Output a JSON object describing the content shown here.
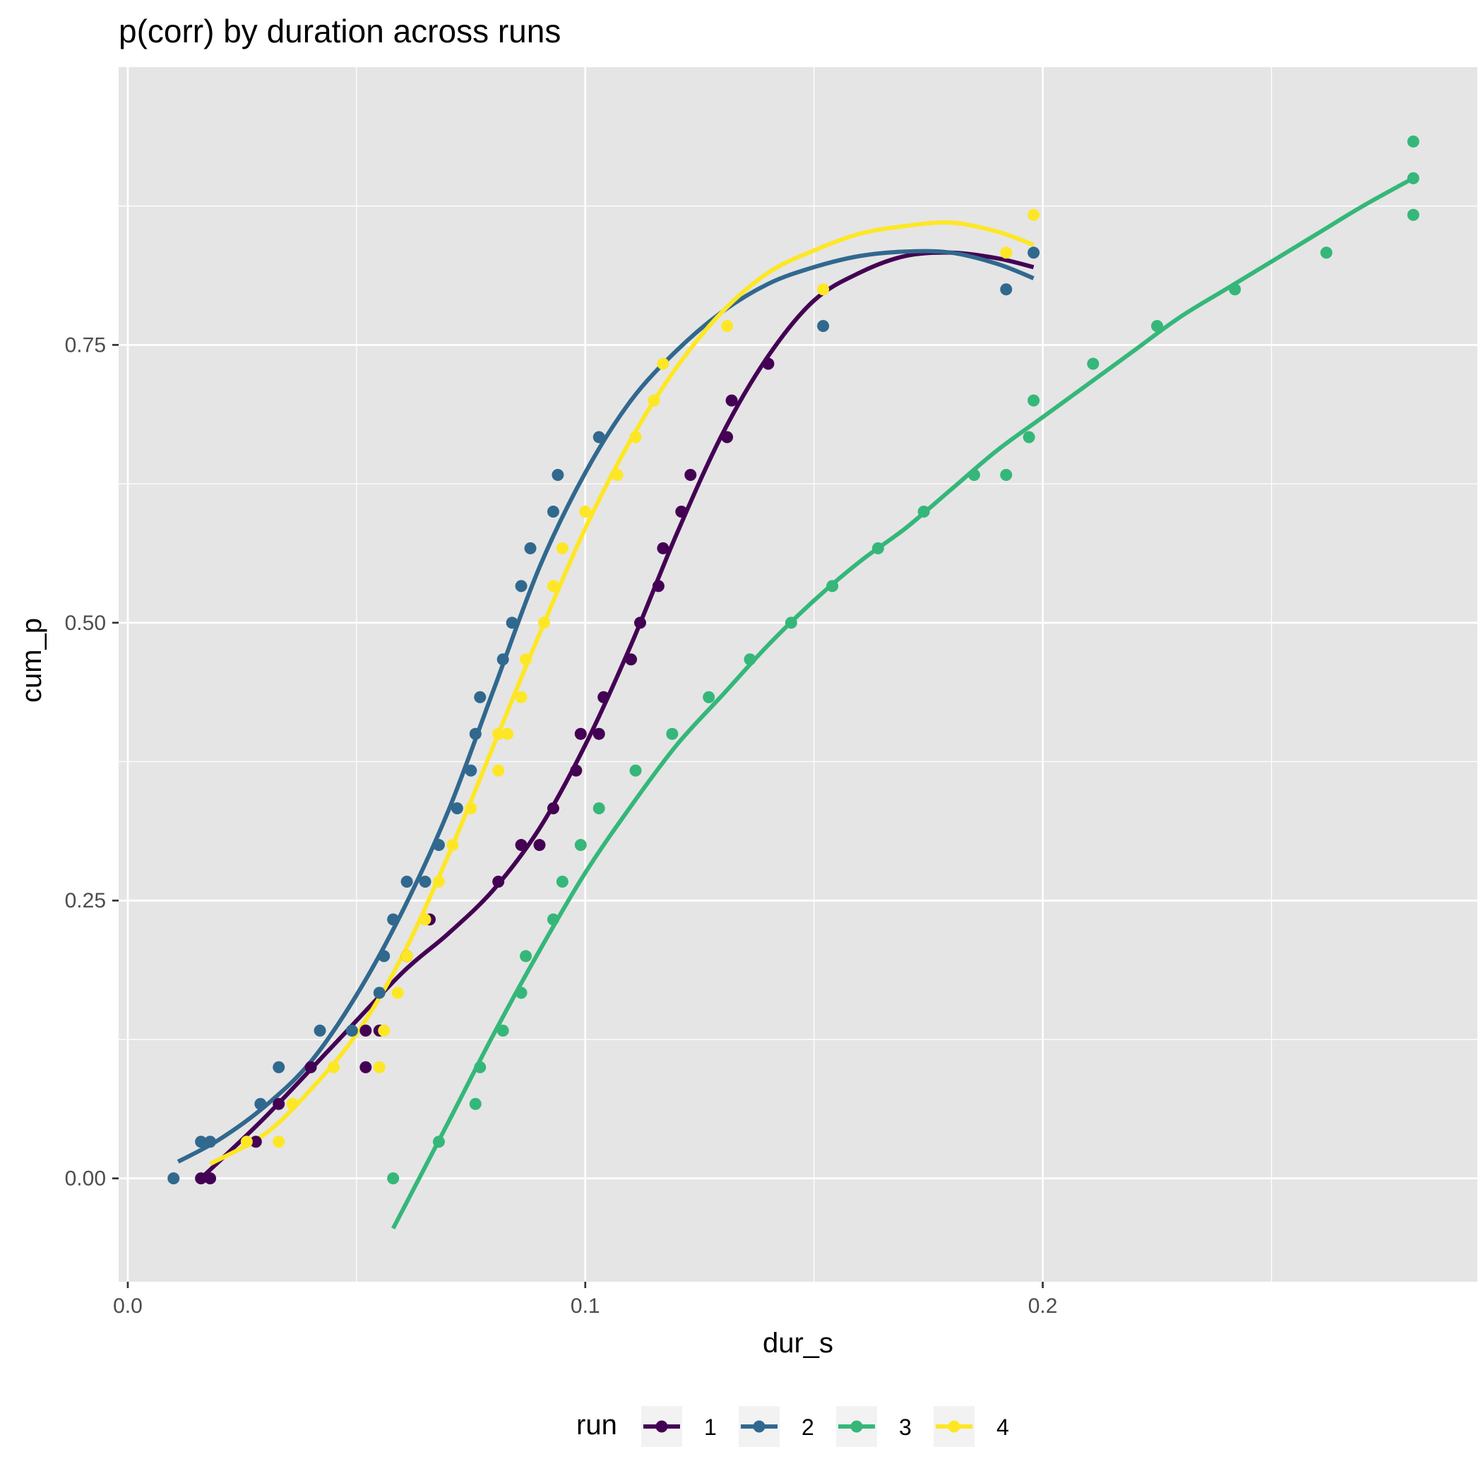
{
  "chart_data": {
    "type": "scatter",
    "title": "p(corr) by duration across runs",
    "xlabel": "dur_s",
    "ylabel": "cum_p",
    "xlim": [
      -0.002,
      0.295
    ],
    "ylim": [
      -0.093,
      1.0
    ],
    "x_ticks": [
      0.0,
      0.1,
      0.2
    ],
    "x_tick_labels": [
      "0.0",
      "0.1",
      "0.2"
    ],
    "y_ticks": [
      0.0,
      0.25,
      0.5,
      0.75
    ],
    "y_tick_labels": [
      "0.00",
      "0.25",
      "0.50",
      "0.75"
    ],
    "grid": true,
    "smooth_lines": true,
    "legend": {
      "title": "run",
      "position": "bottom",
      "entries": [
        "1",
        "2",
        "3",
        "4"
      ]
    },
    "series": [
      {
        "name": "1",
        "color": "#440154",
        "points": [
          [
            0.016,
            0.0
          ],
          [
            0.018,
            0.0
          ],
          [
            0.028,
            0.033
          ],
          [
            0.033,
            0.067
          ],
          [
            0.04,
            0.1
          ],
          [
            0.052,
            0.1
          ],
          [
            0.052,
            0.133
          ],
          [
            0.055,
            0.133
          ],
          [
            0.061,
            0.2
          ],
          [
            0.066,
            0.233
          ],
          [
            0.081,
            0.267
          ],
          [
            0.086,
            0.3
          ],
          [
            0.09,
            0.3
          ],
          [
            0.093,
            0.333
          ],
          [
            0.098,
            0.367
          ],
          [
            0.099,
            0.4
          ],
          [
            0.103,
            0.4
          ],
          [
            0.104,
            0.433
          ],
          [
            0.11,
            0.467
          ],
          [
            0.112,
            0.5
          ],
          [
            0.116,
            0.533
          ],
          [
            0.117,
            0.567
          ],
          [
            0.121,
            0.6
          ],
          [
            0.123,
            0.633
          ],
          [
            0.131,
            0.667
          ],
          [
            0.132,
            0.7
          ],
          [
            0.14,
            0.733
          ]
        ],
        "fit": [
          [
            0.016,
            0.0
          ],
          [
            0.03,
            0.055
          ],
          [
            0.045,
            0.12
          ],
          [
            0.06,
            0.185
          ],
          [
            0.07,
            0.22
          ],
          [
            0.08,
            0.26
          ],
          [
            0.09,
            0.315
          ],
          [
            0.1,
            0.39
          ],
          [
            0.11,
            0.48
          ],
          [
            0.12,
            0.58
          ],
          [
            0.13,
            0.67
          ],
          [
            0.14,
            0.74
          ],
          [
            0.15,
            0.79
          ],
          [
            0.16,
            0.815
          ],
          [
            0.17,
            0.83
          ],
          [
            0.18,
            0.833
          ],
          [
            0.19,
            0.828
          ],
          [
            0.198,
            0.82
          ]
        ]
      },
      {
        "name": "2",
        "color": "#31688e",
        "points": [
          [
            0.01,
            0.0
          ],
          [
            0.016,
            0.033
          ],
          [
            0.018,
            0.033
          ],
          [
            0.029,
            0.067
          ],
          [
            0.033,
            0.1
          ],
          [
            0.042,
            0.133
          ],
          [
            0.049,
            0.133
          ],
          [
            0.055,
            0.167
          ],
          [
            0.056,
            0.2
          ],
          [
            0.058,
            0.233
          ],
          [
            0.061,
            0.267
          ],
          [
            0.065,
            0.267
          ],
          [
            0.068,
            0.3
          ],
          [
            0.072,
            0.333
          ],
          [
            0.075,
            0.367
          ],
          [
            0.076,
            0.4
          ],
          [
            0.077,
            0.433
          ],
          [
            0.082,
            0.467
          ],
          [
            0.084,
            0.5
          ],
          [
            0.086,
            0.533
          ],
          [
            0.088,
            0.567
          ],
          [
            0.093,
            0.6
          ],
          [
            0.094,
            0.633
          ],
          [
            0.103,
            0.667
          ],
          [
            0.152,
            0.767
          ],
          [
            0.192,
            0.8
          ],
          [
            0.198,
            0.833
          ]
        ],
        "fit": [
          [
            0.011,
            0.015
          ],
          [
            0.02,
            0.035
          ],
          [
            0.03,
            0.065
          ],
          [
            0.04,
            0.105
          ],
          [
            0.05,
            0.165
          ],
          [
            0.06,
            0.24
          ],
          [
            0.07,
            0.33
          ],
          [
            0.08,
            0.44
          ],
          [
            0.09,
            0.55
          ],
          [
            0.1,
            0.635
          ],
          [
            0.11,
            0.7
          ],
          [
            0.12,
            0.745
          ],
          [
            0.13,
            0.78
          ],
          [
            0.14,
            0.805
          ],
          [
            0.15,
            0.82
          ],
          [
            0.16,
            0.83
          ],
          [
            0.17,
            0.834
          ],
          [
            0.18,
            0.833
          ],
          [
            0.19,
            0.823
          ],
          [
            0.198,
            0.81
          ]
        ]
      },
      {
        "name": "3",
        "color": "#35b779",
        "points": [
          [
            0.058,
            0.0
          ],
          [
            0.068,
            0.033
          ],
          [
            0.076,
            0.067
          ],
          [
            0.077,
            0.1
          ],
          [
            0.082,
            0.133
          ],
          [
            0.086,
            0.167
          ],
          [
            0.087,
            0.2
          ],
          [
            0.093,
            0.233
          ],
          [
            0.095,
            0.267
          ],
          [
            0.099,
            0.3
          ],
          [
            0.103,
            0.333
          ],
          [
            0.111,
            0.367
          ],
          [
            0.119,
            0.4
          ],
          [
            0.127,
            0.433
          ],
          [
            0.136,
            0.467
          ],
          [
            0.145,
            0.5
          ],
          [
            0.154,
            0.533
          ],
          [
            0.164,
            0.567
          ],
          [
            0.174,
            0.6
          ],
          [
            0.185,
            0.633
          ],
          [
            0.192,
            0.633
          ],
          [
            0.197,
            0.667
          ],
          [
            0.198,
            0.7
          ],
          [
            0.211,
            0.733
          ],
          [
            0.225,
            0.767
          ],
          [
            0.242,
            0.8
          ],
          [
            0.262,
            0.833
          ],
          [
            0.281,
            0.867
          ],
          [
            0.281,
            0.9
          ],
          [
            0.281,
            0.933
          ]
        ],
        "fit": [
          [
            0.058,
            -0.045
          ],
          [
            0.07,
            0.05
          ],
          [
            0.08,
            0.13
          ],
          [
            0.09,
            0.205
          ],
          [
            0.1,
            0.275
          ],
          [
            0.11,
            0.335
          ],
          [
            0.12,
            0.39
          ],
          [
            0.13,
            0.435
          ],
          [
            0.14,
            0.48
          ],
          [
            0.15,
            0.52
          ],
          [
            0.16,
            0.555
          ],
          [
            0.17,
            0.585
          ],
          [
            0.18,
            0.62
          ],
          [
            0.19,
            0.655
          ],
          [
            0.2,
            0.685
          ],
          [
            0.21,
            0.715
          ],
          [
            0.22,
            0.745
          ],
          [
            0.23,
            0.775
          ],
          [
            0.24,
            0.8
          ],
          [
            0.25,
            0.825
          ],
          [
            0.26,
            0.85
          ],
          [
            0.27,
            0.875
          ],
          [
            0.281,
            0.9
          ]
        ]
      },
      {
        "name": "4",
        "color": "#fde725",
        "points": [
          [
            0.026,
            0.033
          ],
          [
            0.033,
            0.033
          ],
          [
            0.036,
            0.067
          ],
          [
            0.045,
            0.1
          ],
          [
            0.055,
            0.1
          ],
          [
            0.056,
            0.133
          ],
          [
            0.059,
            0.167
          ],
          [
            0.061,
            0.2
          ],
          [
            0.065,
            0.233
          ],
          [
            0.068,
            0.267
          ],
          [
            0.071,
            0.3
          ],
          [
            0.075,
            0.333
          ],
          [
            0.081,
            0.367
          ],
          [
            0.081,
            0.4
          ],
          [
            0.083,
            0.4
          ],
          [
            0.086,
            0.433
          ],
          [
            0.087,
            0.467
          ],
          [
            0.091,
            0.5
          ],
          [
            0.093,
            0.533
          ],
          [
            0.095,
            0.567
          ],
          [
            0.1,
            0.6
          ],
          [
            0.107,
            0.633
          ],
          [
            0.111,
            0.667
          ],
          [
            0.115,
            0.7
          ],
          [
            0.117,
            0.733
          ],
          [
            0.131,
            0.767
          ],
          [
            0.152,
            0.8
          ],
          [
            0.192,
            0.833
          ],
          [
            0.198,
            0.867
          ]
        ],
        "fit": [
          [
            0.018,
            0.013
          ],
          [
            0.03,
            0.04
          ],
          [
            0.04,
            0.08
          ],
          [
            0.05,
            0.13
          ],
          [
            0.06,
            0.2
          ],
          [
            0.07,
            0.29
          ],
          [
            0.08,
            0.39
          ],
          [
            0.09,
            0.49
          ],
          [
            0.1,
            0.585
          ],
          [
            0.11,
            0.665
          ],
          [
            0.12,
            0.73
          ],
          [
            0.13,
            0.78
          ],
          [
            0.14,
            0.815
          ],
          [
            0.15,
            0.835
          ],
          [
            0.16,
            0.85
          ],
          [
            0.17,
            0.857
          ],
          [
            0.18,
            0.86
          ],
          [
            0.19,
            0.852
          ],
          [
            0.198,
            0.84
          ]
        ]
      }
    ]
  }
}
